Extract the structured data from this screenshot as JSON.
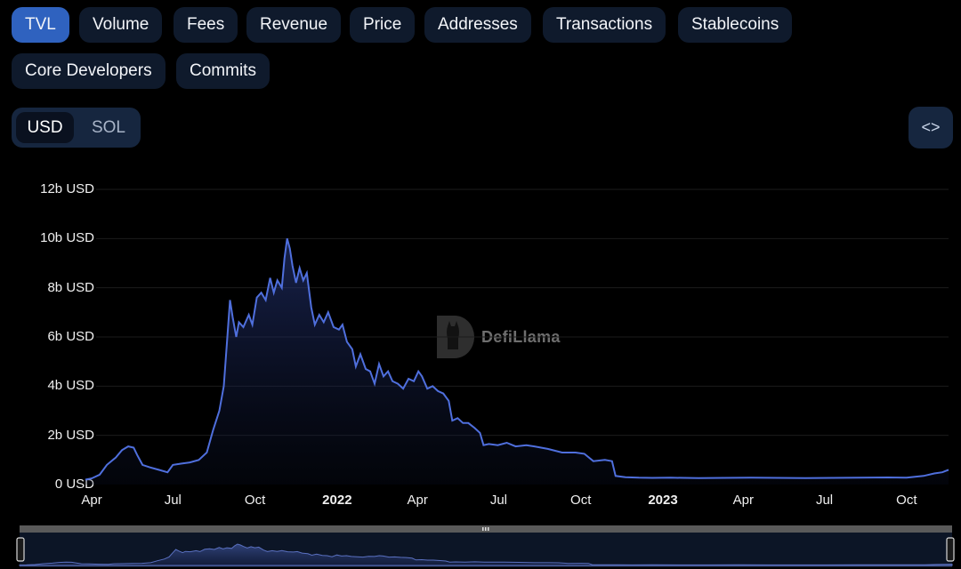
{
  "tabs": [
    {
      "label": "TVL",
      "active": true
    },
    {
      "label": "Volume"
    },
    {
      "label": "Fees"
    },
    {
      "label": "Revenue"
    },
    {
      "label": "Price"
    },
    {
      "label": "Addresses"
    },
    {
      "label": "Transactions"
    },
    {
      "label": "Stablecoins"
    },
    {
      "label": "Core Developers"
    },
    {
      "label": "Commits"
    }
  ],
  "currency_toggle": {
    "options": [
      "USD",
      "SOL"
    ],
    "selected": "USD"
  },
  "embed_button": {
    "icon": "code-brackets-icon",
    "glyph": "<>"
  },
  "watermark": {
    "text": "DefiLlama"
  },
  "colors": {
    "line": "#4f6fdd",
    "active_tab": "#2f62bf",
    "tab_bg": "#0f1a2c",
    "background": "#000000"
  },
  "chart_data": {
    "type": "area",
    "title": "",
    "xlabel": "",
    "ylabel": "",
    "ylim": [
      0,
      12
    ],
    "y_unit": "b USD",
    "y_ticks": [
      "0 USD",
      "2b USD",
      "4b USD",
      "6b USD",
      "8b USD",
      "10b USD",
      "12b USD"
    ],
    "x_ticks": [
      {
        "label": "Apr",
        "date": "2021-04-01"
      },
      {
        "label": "Jul",
        "date": "2021-07-01"
      },
      {
        "label": "Oct",
        "date": "2021-10-01"
      },
      {
        "label": "2022",
        "date": "2022-01-01",
        "bold": true
      },
      {
        "label": "Apr",
        "date": "2022-04-01"
      },
      {
        "label": "Jul",
        "date": "2022-07-01"
      },
      {
        "label": "Oct",
        "date": "2022-10-01"
      },
      {
        "label": "2023",
        "date": "2023-01-01",
        "bold": true
      },
      {
        "label": "Apr",
        "date": "2023-04-01"
      },
      {
        "label": "Jul",
        "date": "2023-07-01"
      },
      {
        "label": "Oct",
        "date": "2023-10-01"
      }
    ],
    "grid": true,
    "series": [
      {
        "name": "",
        "points": [
          [
            "2021-03-25",
            0.2
          ],
          [
            "2021-04-01",
            0.25
          ],
          [
            "2021-04-10",
            0.4
          ],
          [
            "2021-04-18",
            0.8
          ],
          [
            "2021-04-28",
            1.1
          ],
          [
            "2021-05-05",
            1.4
          ],
          [
            "2021-05-12",
            1.55
          ],
          [
            "2021-05-18",
            1.5
          ],
          [
            "2021-05-22",
            1.2
          ],
          [
            "2021-05-28",
            0.8
          ],
          [
            "2021-06-05",
            0.7
          ],
          [
            "2021-06-15",
            0.6
          ],
          [
            "2021-06-25",
            0.5
          ],
          [
            "2021-07-01",
            0.8
          ],
          [
            "2021-07-10",
            0.85
          ],
          [
            "2021-07-20",
            0.9
          ],
          [
            "2021-07-30",
            1.0
          ],
          [
            "2021-08-08",
            1.3
          ],
          [
            "2021-08-15",
            2.2
          ],
          [
            "2021-08-22",
            3.0
          ],
          [
            "2021-08-27",
            4.0
          ],
          [
            "2021-08-31",
            6.0
          ],
          [
            "2021-09-03",
            7.5
          ],
          [
            "2021-09-06",
            6.8
          ],
          [
            "2021-09-10",
            6.0
          ],
          [
            "2021-09-13",
            6.6
          ],
          [
            "2021-09-18",
            6.4
          ],
          [
            "2021-09-24",
            6.9
          ],
          [
            "2021-09-28",
            6.5
          ],
          [
            "2021-10-03",
            7.6
          ],
          [
            "2021-10-08",
            7.8
          ],
          [
            "2021-10-13",
            7.5
          ],
          [
            "2021-10-18",
            8.4
          ],
          [
            "2021-10-22",
            7.8
          ],
          [
            "2021-10-26",
            8.3
          ],
          [
            "2021-10-31",
            8.0
          ],
          [
            "2021-11-03",
            9.2
          ],
          [
            "2021-11-06",
            10.0
          ],
          [
            "2021-11-09",
            9.6
          ],
          [
            "2021-11-12",
            8.9
          ],
          [
            "2021-11-16",
            8.2
          ],
          [
            "2021-11-20",
            8.8
          ],
          [
            "2021-11-24",
            8.3
          ],
          [
            "2021-11-28",
            8.6
          ],
          [
            "2021-12-03",
            7.2
          ],
          [
            "2021-12-07",
            6.5
          ],
          [
            "2021-12-12",
            6.9
          ],
          [
            "2021-12-17",
            6.6
          ],
          [
            "2021-12-22",
            7.0
          ],
          [
            "2021-12-28",
            6.4
          ],
          [
            "2022-01-03",
            6.3
          ],
          [
            "2022-01-07",
            6.5
          ],
          [
            "2022-01-12",
            5.8
          ],
          [
            "2022-01-18",
            5.5
          ],
          [
            "2022-01-22",
            4.8
          ],
          [
            "2022-01-27",
            5.3
          ],
          [
            "2022-02-02",
            4.7
          ],
          [
            "2022-02-07",
            4.6
          ],
          [
            "2022-02-12",
            4.1
          ],
          [
            "2022-02-17",
            4.9
          ],
          [
            "2022-02-22",
            4.4
          ],
          [
            "2022-02-27",
            4.6
          ],
          [
            "2022-03-04",
            4.2
          ],
          [
            "2022-03-10",
            4.1
          ],
          [
            "2022-03-16",
            3.9
          ],
          [
            "2022-03-22",
            4.3
          ],
          [
            "2022-03-28",
            4.2
          ],
          [
            "2022-04-02",
            4.6
          ],
          [
            "2022-04-06",
            4.4
          ],
          [
            "2022-04-12",
            3.9
          ],
          [
            "2022-04-18",
            4.0
          ],
          [
            "2022-04-24",
            3.8
          ],
          [
            "2022-04-30",
            3.7
          ],
          [
            "2022-05-06",
            3.4
          ],
          [
            "2022-05-10",
            2.6
          ],
          [
            "2022-05-16",
            2.7
          ],
          [
            "2022-05-22",
            2.5
          ],
          [
            "2022-05-28",
            2.5
          ],
          [
            "2022-06-04",
            2.3
          ],
          [
            "2022-06-10",
            2.1
          ],
          [
            "2022-06-14",
            1.6
          ],
          [
            "2022-06-20",
            1.65
          ],
          [
            "2022-06-30",
            1.6
          ],
          [
            "2022-07-10",
            1.7
          ],
          [
            "2022-07-20",
            1.55
          ],
          [
            "2022-08-01",
            1.6
          ],
          [
            "2022-08-10",
            1.55
          ],
          [
            "2022-08-25",
            1.45
          ],
          [
            "2022-09-10",
            1.3
          ],
          [
            "2022-09-25",
            1.3
          ],
          [
            "2022-10-05",
            1.25
          ],
          [
            "2022-10-15",
            0.95
          ],
          [
            "2022-10-28",
            1.0
          ],
          [
            "2022-11-05",
            0.95
          ],
          [
            "2022-11-09",
            0.35
          ],
          [
            "2022-11-20",
            0.3
          ],
          [
            "2022-12-05",
            0.28
          ],
          [
            "2022-12-20",
            0.27
          ],
          [
            "2023-01-10",
            0.28
          ],
          [
            "2023-02-10",
            0.26
          ],
          [
            "2023-03-10",
            0.27
          ],
          [
            "2023-04-10",
            0.28
          ],
          [
            "2023-05-10",
            0.27
          ],
          [
            "2023-06-10",
            0.26
          ],
          [
            "2023-07-10",
            0.27
          ],
          [
            "2023-08-10",
            0.28
          ],
          [
            "2023-09-10",
            0.29
          ],
          [
            "2023-10-01",
            0.28
          ],
          [
            "2023-10-20",
            0.35
          ],
          [
            "2023-11-01",
            0.45
          ],
          [
            "2023-11-10",
            0.5
          ],
          [
            "2023-11-17",
            0.6
          ]
        ]
      }
    ]
  }
}
